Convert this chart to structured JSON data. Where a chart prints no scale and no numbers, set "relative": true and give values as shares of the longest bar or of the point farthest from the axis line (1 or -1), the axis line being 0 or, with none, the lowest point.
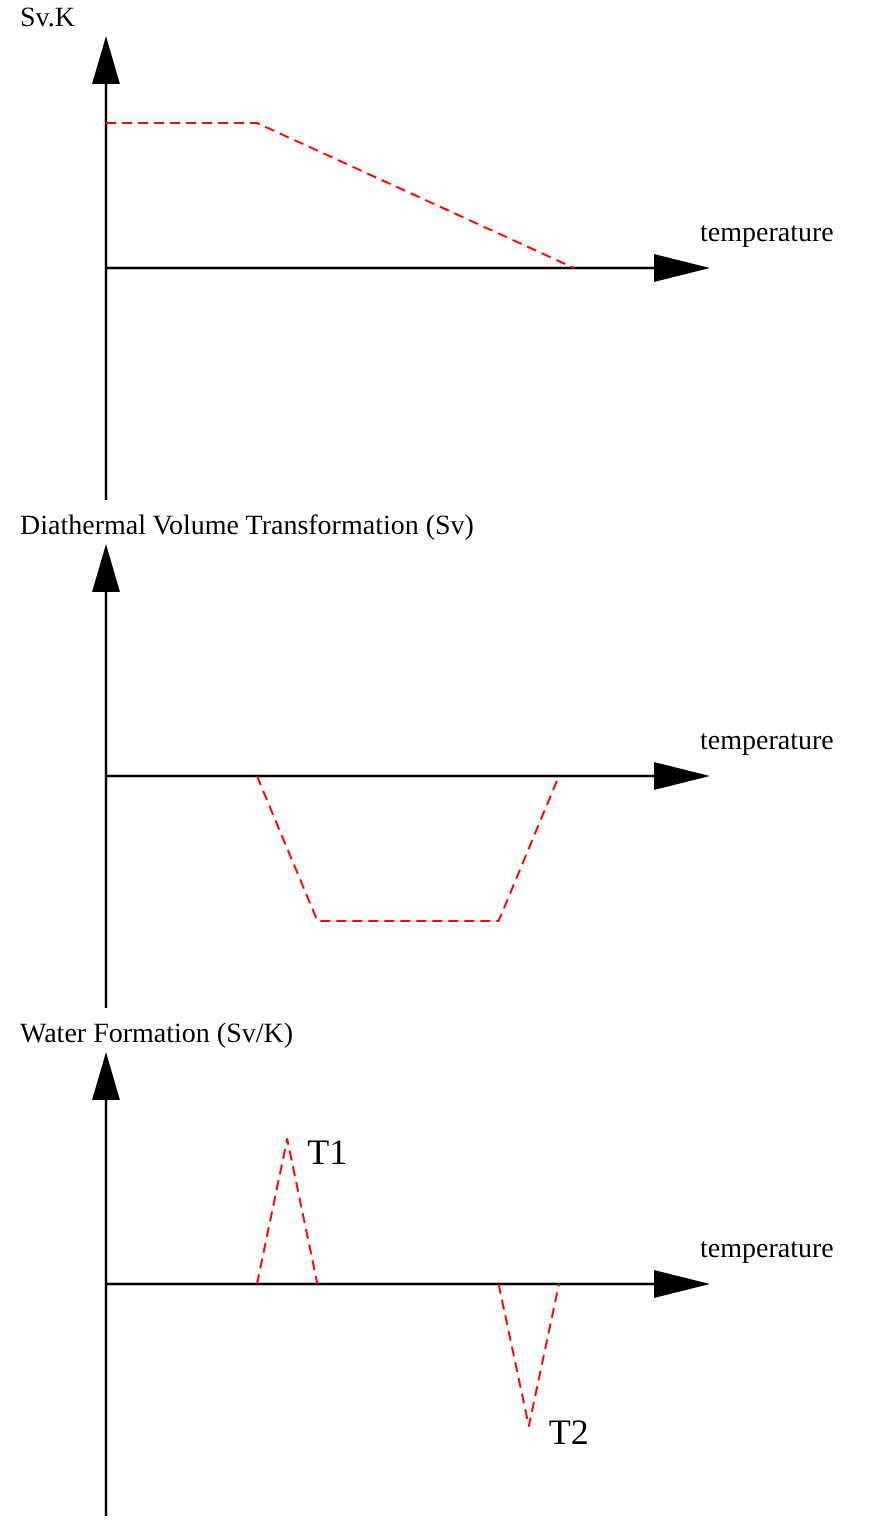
{
  "chart_data": [
    {
      "type": "line",
      "ylabel": "Sv.K",
      "xlabel": "temperature",
      "relative": true,
      "line_style": "dashed",
      "tick_labels": false,
      "categories": [
        null,
        null,
        null,
        null,
        null,
        null,
        null,
        null,
        null,
        null,
        null,
        null,
        null,
        null,
        null,
        null,
        null,
        null,
        null,
        null,
        null,
        null,
        null,
        null,
        null,
        null,
        null,
        null,
        null,
        null,
        null,
        null,
        null,
        null,
        null,
        null,
        null,
        null,
        null,
        null,
        null
      ],
      "series": [
        {
          "color": "#ff0000",
          "values": [
            1,
            null,
            null,
            null,
            null,
            null,
            null,
            null,
            null,
            null,
            1,
            null,
            null,
            null,
            null,
            null,
            null,
            null,
            null,
            null,
            null,
            null,
            null,
            null,
            null,
            null,
            null,
            null,
            null,
            null,
            null,
            0,
            null,
            null,
            null,
            null,
            null,
            null,
            null,
            null,
            null
          ]
        }
      ]
    },
    {
      "type": "line",
      "ylabel": "Diathermal Volume Transformation (Sv)",
      "xlabel": "temperature",
      "relative": true,
      "line_style": "dashed",
      "tick_labels": false,
      "categories": [
        null,
        null,
        null,
        null,
        null,
        null,
        null,
        null,
        null,
        null,
        null,
        null,
        null,
        null,
        null,
        null,
        null,
        null,
        null,
        null,
        null,
        null,
        null,
        null,
        null,
        null,
        null,
        null,
        null,
        null,
        null,
        null,
        null,
        null,
        null,
        null,
        null,
        null,
        null,
        null,
        null
      ],
      "series": [
        {
          "color": "#ff0000",
          "values": [
            null,
            null,
            null,
            null,
            null,
            null,
            null,
            null,
            null,
            null,
            0,
            null,
            null,
            null,
            -1,
            null,
            null,
            null,
            null,
            null,
            null,
            null,
            null,
            null,
            null,
            null,
            -1,
            null,
            null,
            null,
            0,
            null,
            null,
            null,
            null,
            null,
            null,
            null,
            null,
            null,
            null
          ]
        }
      ]
    },
    {
      "type": "line",
      "ylabel": "Water Formation (Sv/K)",
      "xlabel": "temperature",
      "relative": true,
      "line_style": "dashed",
      "tick_labels": false,
      "annotations": [
        "T1",
        "T2"
      ],
      "categories": [
        null,
        null,
        null,
        null,
        null,
        null,
        null,
        null,
        null,
        null,
        null,
        null,
        null,
        null,
        null,
        null,
        null,
        null,
        null,
        null,
        null,
        null,
        null,
        null,
        null,
        null,
        null,
        null,
        null,
        null,
        null,
        null,
        null,
        null,
        null,
        null,
        null,
        null,
        null,
        null,
        null
      ],
      "series": [
        {
          "color": "#ff0000",
          "values": [
            null,
            null,
            null,
            null,
            null,
            null,
            null,
            null,
            null,
            null,
            0,
            null,
            1,
            null,
            0,
            null,
            null,
            null,
            null,
            null,
            null,
            null,
            null,
            null,
            null,
            null,
            null,
            null,
            null,
            null,
            null,
            null,
            null,
            null,
            null,
            null,
            null,
            null,
            null,
            null,
            null
          ]
        },
        {
          "color": "#ff0000",
          "values": [
            null,
            null,
            null,
            null,
            null,
            null,
            null,
            null,
            null,
            null,
            null,
            null,
            null,
            null,
            null,
            null,
            null,
            null,
            null,
            null,
            null,
            null,
            null,
            null,
            null,
            null,
            0,
            null,
            -0.98,
            null,
            0,
            null,
            null,
            null,
            null,
            null,
            null,
            null,
            null,
            null,
            null
          ]
        }
      ]
    }
  ]
}
